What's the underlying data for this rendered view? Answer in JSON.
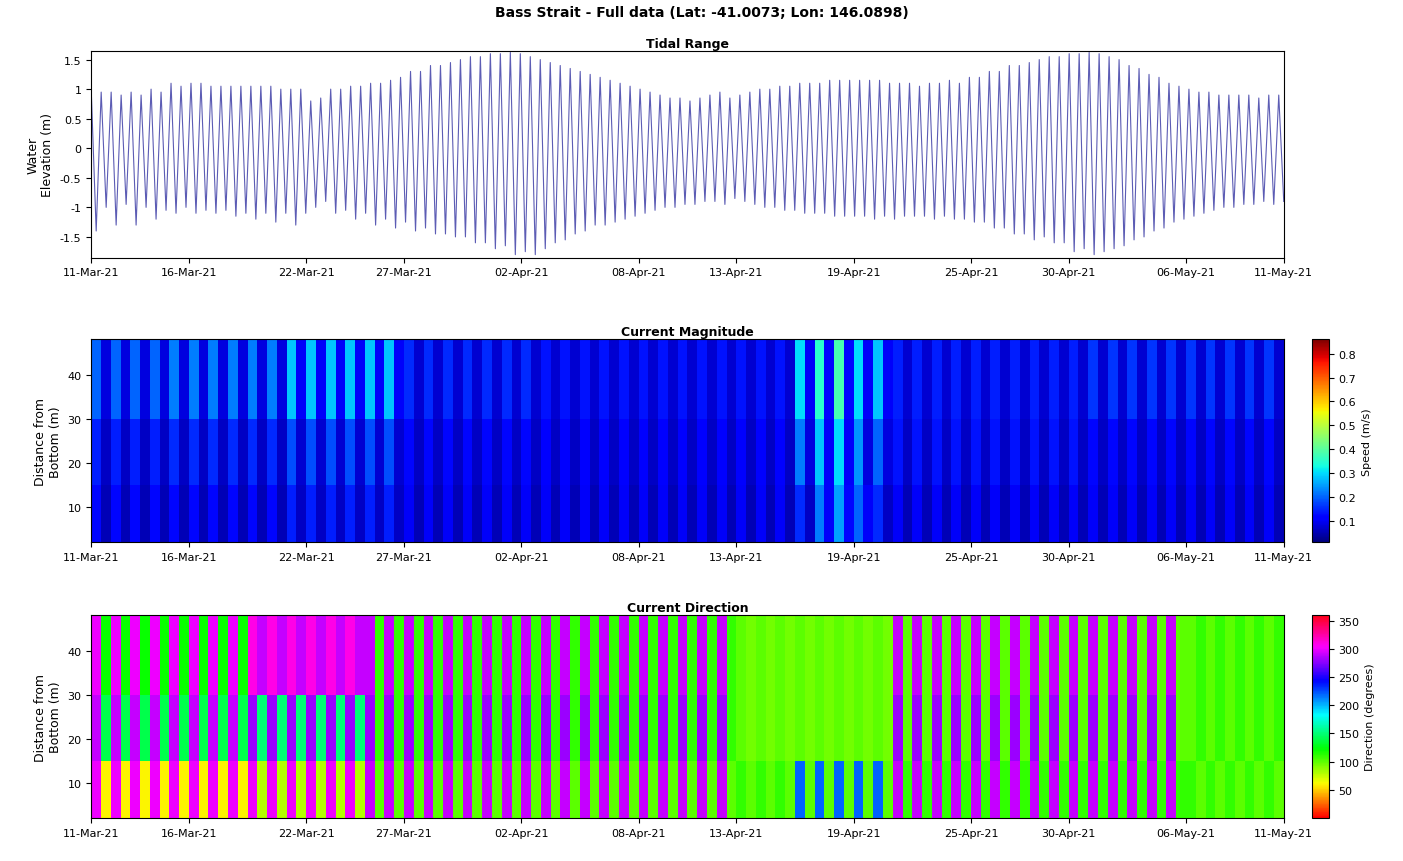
{
  "title": "Bass Strait - Full data (Lat: -41.0073; Lon: 146.0898)",
  "chart_data": [
    {
      "type": "line",
      "title": "Tidal Range",
      "y_label": "Water\nElevation (m)",
      "color": "#5c5cb4",
      "xlim": [
        "11-Mar-21",
        "11-May-21"
      ],
      "xticks": [
        "11-Mar-21",
        "16-Mar-21",
        "22-Mar-21",
        "27-Mar-21",
        "02-Apr-21",
        "08-Apr-21",
        "13-Apr-21",
        "19-Apr-21",
        "25-Apr-21",
        "30-Apr-21",
        "06-May-21",
        "11-May-21"
      ],
      "ylim": [
        -1.85,
        1.65
      ],
      "yticks": [
        -1.5,
        -1,
        -0.5,
        0,
        0.5,
        1,
        1.5
      ],
      "values": [
        1.0,
        -1.4,
        0.95,
        -1.0,
        0.95,
        -1.3,
        0.9,
        -0.95,
        0.95,
        -1.3,
        0.9,
        -1.0,
        1.0,
        -1.2,
        0.95,
        -1.05,
        1.1,
        -1.1,
        1.05,
        -1.0,
        1.1,
        -1.1,
        1.1,
        -1.05,
        1.05,
        -1.1,
        1.05,
        -1.05,
        1.05,
        -1.15,
        1.05,
        -1.1,
        1.05,
        -1.2,
        1.05,
        -1.1,
        1.05,
        -1.25,
        1.0,
        -1.1,
        1.0,
        -1.3,
        1.0,
        -1.1,
        0.8,
        -1.0,
        0.85,
        -0.9,
        1.0,
        -1.1,
        1.0,
        -1.05,
        1.05,
        -1.2,
        1.05,
        -1.1,
        1.1,
        -1.3,
        1.1,
        -1.2,
        1.15,
        -1.35,
        1.2,
        -1.25,
        1.3,
        -1.4,
        1.3,
        -1.35,
        1.4,
        -1.45,
        1.4,
        -1.45,
        1.45,
        -1.5,
        1.5,
        -1.5,
        1.55,
        -1.6,
        1.55,
        -1.6,
        1.6,
        -1.7,
        1.6,
        -1.65,
        1.62,
        -1.8,
        1.6,
        -1.75,
        1.55,
        -1.8,
        1.5,
        -1.7,
        1.45,
        -1.6,
        1.4,
        -1.55,
        1.35,
        -1.45,
        1.3,
        -1.4,
        1.25,
        -1.3,
        1.2,
        -1.3,
        1.15,
        -1.25,
        1.1,
        -1.2,
        1.05,
        -1.15,
        1.0,
        -1.1,
        0.95,
        -1.05,
        0.9,
        -1.0,
        0.85,
        -1.0,
        0.85,
        -0.95,
        0.8,
        -0.95,
        0.85,
        -0.9,
        0.9,
        -0.9,
        0.95,
        -0.95,
        0.85,
        -0.85,
        0.9,
        -0.9,
        0.95,
        -0.95,
        1.0,
        -1.0,
        1.0,
        -1.0,
        1.05,
        -1.05,
        1.05,
        -1.05,
        1.1,
        -1.1,
        1.1,
        -1.1,
        1.1,
        -1.1,
        1.15,
        -1.15,
        1.15,
        -1.15,
        1.15,
        -1.15,
        1.15,
        -1.15,
        1.15,
        -1.2,
        1.15,
        -1.15,
        1.1,
        -1.2,
        1.1,
        -1.15,
        1.1,
        -1.15,
        1.05,
        -1.15,
        1.1,
        -1.2,
        1.1,
        -1.15,
        1.15,
        -1.2,
        1.1,
        -1.2,
        1.2,
        -1.25,
        1.2,
        -1.25,
        1.3,
        -1.35,
        1.3,
        -1.35,
        1.4,
        -1.45,
        1.4,
        -1.45,
        1.45,
        -1.55,
        1.5,
        -1.5,
        1.55,
        -1.6,
        1.55,
        -1.6,
        1.6,
        -1.75,
        1.6,
        -1.7,
        1.62,
        -1.8,
        1.6,
        -1.75,
        1.55,
        -1.7,
        1.5,
        -1.65,
        1.4,
        -1.55,
        1.35,
        -1.5,
        1.25,
        -1.4,
        1.2,
        -1.35,
        1.1,
        -1.25,
        1.05,
        -1.2,
        1.0,
        -1.15,
        0.95,
        -1.1,
        0.95,
        -1.05,
        0.9,
        -1.0,
        0.9,
        -1.0,
        0.9,
        -0.95,
        0.9,
        -0.95,
        0.85,
        -0.9,
        0.9,
        -0.95,
        0.9,
        -0.9
      ]
    },
    {
      "type": "heatmap",
      "title": "Current Magnitude",
      "y_label": "Distance from\nBottom (m)",
      "colorbar_label": "Speed (m/s)",
      "xlim": [
        "11-Mar-21",
        "11-May-21"
      ],
      "xticks": [
        "11-Mar-21",
        "16-Mar-21",
        "22-Mar-21",
        "27-Mar-21",
        "02-Apr-21",
        "08-Apr-21",
        "13-Apr-21",
        "19-Apr-21",
        "25-Apr-21",
        "30-Apr-21",
        "06-May-21",
        "11-May-21"
      ],
      "ylim": [
        2,
        48
      ],
      "yticks": [
        10,
        20,
        30,
        40
      ],
      "y_bins": [
        2,
        15,
        30,
        48
      ],
      "colorbar_range": [
        0.01,
        0.86
      ],
      "colorbar_ticks": [
        0.1,
        0.2,
        0.3,
        0.4,
        0.5,
        0.6,
        0.7,
        0.8
      ],
      "cells": [
        [
          0.12,
          0.05,
          0.12,
          0.05,
          0.12,
          0.05,
          0.12,
          0.05,
          0.12,
          0.05,
          0.12,
          0.05,
          0.12,
          0.05,
          0.12,
          0.05,
          0.12,
          0.05,
          0.12,
          0.05,
          0.14,
          0.06,
          0.14,
          0.06,
          0.14,
          0.06,
          0.14,
          0.06,
          0.14,
          0.06,
          0.14,
          0.06,
          0.1,
          0.05,
          0.1,
          0.05,
          0.1,
          0.05,
          0.1,
          0.05,
          0.1,
          0.05,
          0.1,
          0.05,
          0.1,
          0.05,
          0.1,
          0.05,
          0.1,
          0.05,
          0.1,
          0.05,
          0.1,
          0.05,
          0.1,
          0.05,
          0.1,
          0.05,
          0.1,
          0.05,
          0.1,
          0.05,
          0.1,
          0.05,
          0.1,
          0.05,
          0.1,
          0.05,
          0.1,
          0.05,
          0.1,
          0.05,
          0.15,
          0.06,
          0.22,
          0.1,
          0.25,
          0.12,
          0.2,
          0.1,
          0.15,
          0.06,
          0.1,
          0.05,
          0.1,
          0.05,
          0.1,
          0.05,
          0.1,
          0.05,
          0.1,
          0.05,
          0.1,
          0.05,
          0.1,
          0.05,
          0.1,
          0.05,
          0.1,
          0.05,
          0.1,
          0.05,
          0.1,
          0.05,
          0.1,
          0.05,
          0.1,
          0.05,
          0.1,
          0.05,
          0.1,
          0.05,
          0.1,
          0.05,
          0.1,
          0.05,
          0.1,
          0.05,
          0.1,
          0.05,
          0.1,
          0.05
        ],
        [
          0.14,
          0.06,
          0.14,
          0.06,
          0.14,
          0.06,
          0.14,
          0.06,
          0.15,
          0.06,
          0.15,
          0.06,
          0.15,
          0.06,
          0.15,
          0.06,
          0.15,
          0.06,
          0.15,
          0.06,
          0.18,
          0.07,
          0.18,
          0.07,
          0.18,
          0.07,
          0.18,
          0.07,
          0.18,
          0.07,
          0.18,
          0.07,
          0.12,
          0.06,
          0.12,
          0.06,
          0.12,
          0.06,
          0.12,
          0.06,
          0.12,
          0.06,
          0.12,
          0.06,
          0.12,
          0.06,
          0.11,
          0.06,
          0.11,
          0.06,
          0.11,
          0.06,
          0.11,
          0.06,
          0.11,
          0.06,
          0.11,
          0.06,
          0.11,
          0.06,
          0.11,
          0.06,
          0.11,
          0.06,
          0.11,
          0.06,
          0.11,
          0.06,
          0.11,
          0.06,
          0.11,
          0.06,
          0.22,
          0.08,
          0.28,
          0.1,
          0.3,
          0.1,
          0.24,
          0.08,
          0.2,
          0.08,
          0.13,
          0.06,
          0.13,
          0.06,
          0.13,
          0.06,
          0.13,
          0.06,
          0.13,
          0.06,
          0.13,
          0.06,
          0.13,
          0.06,
          0.13,
          0.06,
          0.13,
          0.06,
          0.13,
          0.06,
          0.12,
          0.06,
          0.12,
          0.06,
          0.12,
          0.06,
          0.12,
          0.06,
          0.12,
          0.06,
          0.12,
          0.06,
          0.12,
          0.06,
          0.12,
          0.06,
          0.12,
          0.06,
          0.12,
          0.06
        ],
        [
          0.2,
          0.08,
          0.2,
          0.08,
          0.2,
          0.08,
          0.2,
          0.08,
          0.22,
          0.08,
          0.22,
          0.08,
          0.22,
          0.08,
          0.22,
          0.08,
          0.22,
          0.08,
          0.22,
          0.08,
          0.28,
          0.1,
          0.28,
          0.1,
          0.28,
          0.1,
          0.28,
          0.1,
          0.28,
          0.1,
          0.28,
          0.1,
          0.15,
          0.07,
          0.15,
          0.07,
          0.15,
          0.07,
          0.15,
          0.07,
          0.15,
          0.07,
          0.15,
          0.07,
          0.15,
          0.07,
          0.13,
          0.07,
          0.13,
          0.07,
          0.13,
          0.07,
          0.13,
          0.07,
          0.13,
          0.07,
          0.13,
          0.07,
          0.13,
          0.07,
          0.13,
          0.07,
          0.13,
          0.07,
          0.13,
          0.07,
          0.13,
          0.07,
          0.13,
          0.07,
          0.13,
          0.07,
          0.3,
          0.1,
          0.35,
          0.12,
          0.38,
          0.12,
          0.3,
          0.1,
          0.28,
          0.1,
          0.14,
          0.07,
          0.14,
          0.07,
          0.14,
          0.07,
          0.14,
          0.07,
          0.14,
          0.07,
          0.14,
          0.07,
          0.14,
          0.07,
          0.14,
          0.07,
          0.14,
          0.07,
          0.14,
          0.07,
          0.16,
          0.07,
          0.16,
          0.07,
          0.16,
          0.07,
          0.16,
          0.07,
          0.16,
          0.07,
          0.16,
          0.07,
          0.16,
          0.07,
          0.16,
          0.07,
          0.16,
          0.07,
          0.16,
          0.07
        ]
      ]
    },
    {
      "type": "heatmap",
      "title": "Current Direction",
      "y_label": "Distance from\nBottom (m)",
      "colorbar_label": "Direction (degrees)",
      "xlim": [
        "11-Mar-21",
        "11-May-21"
      ],
      "xticks": [
        "11-Mar-21",
        "16-Mar-21",
        "22-Mar-21",
        "27-Mar-21",
        "02-Apr-21",
        "08-Apr-21",
        "13-Apr-21",
        "19-Apr-21",
        "25-Apr-21",
        "30-Apr-21",
        "06-May-21",
        "11-May-21"
      ],
      "ylim": [
        2,
        48
      ],
      "yticks": [
        10,
        20,
        30,
        40
      ],
      "y_bins": [
        2,
        15,
        30,
        48
      ],
      "colorbar_range": [
        0,
        360
      ],
      "colorbar_ticks": [
        50,
        100,
        150,
        200,
        250,
        300,
        350
      ],
      "cells": [
        [
          300,
          60,
          300,
          60,
          300,
          60,
          300,
          60,
          300,
          60,
          300,
          60,
          300,
          60,
          300,
          60,
          300,
          80,
          300,
          80,
          300,
          80,
          300,
          80,
          300,
          80,
          300,
          80,
          290,
          100,
          290,
          100,
          290,
          100,
          290,
          100,
          290,
          100,
          290,
          100,
          290,
          100,
          290,
          100,
          290,
          100,
          290,
          100,
          290,
          100,
          290,
          100,
          290,
          100,
          290,
          100,
          290,
          100,
          290,
          100,
          290,
          100,
          290,
          100,
          290,
          100,
          110,
          100,
          110,
          100,
          110,
          100,
          220,
          100,
          220,
          100,
          220,
          100,
          220,
          100,
          220,
          100,
          290,
          110,
          290,
          110,
          290,
          110,
          290,
          110,
          290,
          110,
          290,
          110,
          290,
          110,
          290,
          110,
          290,
          110,
          290,
          110,
          290,
          110,
          290,
          110,
          290,
          110,
          290,
          110,
          290,
          110,
          110,
          100,
          110,
          100,
          110,
          100,
          110,
          100,
          110,
          100
        ],
        [
          290,
          140,
          290,
          140,
          290,
          140,
          290,
          140,
          290,
          140,
          290,
          140,
          290,
          140,
          290,
          140,
          280,
          150,
          280,
          150,
          280,
          150,
          280,
          150,
          280,
          150,
          280,
          150,
          280,
          110,
          280,
          110,
          280,
          110,
          280,
          110,
          280,
          110,
          280,
          110,
          280,
          110,
          280,
          110,
          280,
          110,
          280,
          110,
          280,
          110,
          280,
          110,
          280,
          110,
          280,
          110,
          280,
          110,
          280,
          110,
          280,
          110,
          280,
          110,
          280,
          110,
          100,
          95,
          100,
          95,
          100,
          95,
          100,
          95,
          100,
          95,
          100,
          95,
          100,
          95,
          100,
          95,
          280,
          100,
          280,
          100,
          280,
          100,
          280,
          100,
          280,
          100,
          280,
          100,
          280,
          100,
          280,
          100,
          280,
          100,
          280,
          100,
          280,
          100,
          280,
          100,
          280,
          100,
          280,
          100,
          280,
          100,
          100,
          110,
          100,
          110,
          100,
          110,
          100,
          110,
          100,
          110
        ],
        [
          300,
          120,
          300,
          120,
          300,
          120,
          300,
          120,
          300,
          120,
          300,
          120,
          300,
          120,
          300,
          120,
          310,
          290,
          310,
          290,
          310,
          290,
          310,
          290,
          310,
          290,
          310,
          290,
          290,
          110,
          290,
          110,
          290,
          110,
          290,
          110,
          290,
          110,
          290,
          110,
          290,
          110,
          290,
          110,
          290,
          110,
          290,
          110,
          290,
          110,
          290,
          110,
          290,
          110,
          290,
          110,
          290,
          110,
          290,
          110,
          290,
          110,
          290,
          110,
          290,
          110,
          100,
          95,
          100,
          95,
          100,
          95,
          100,
          95,
          100,
          95,
          100,
          95,
          100,
          95,
          100,
          95,
          290,
          100,
          290,
          100,
          290,
          100,
          290,
          100,
          290,
          100,
          290,
          100,
          290,
          100,
          290,
          100,
          290,
          100,
          290,
          100,
          290,
          100,
          290,
          100,
          290,
          100,
          290,
          100,
          290,
          100,
          100,
          110,
          100,
          110,
          100,
          110,
          100,
          110,
          100,
          110
        ]
      ]
    }
  ]
}
